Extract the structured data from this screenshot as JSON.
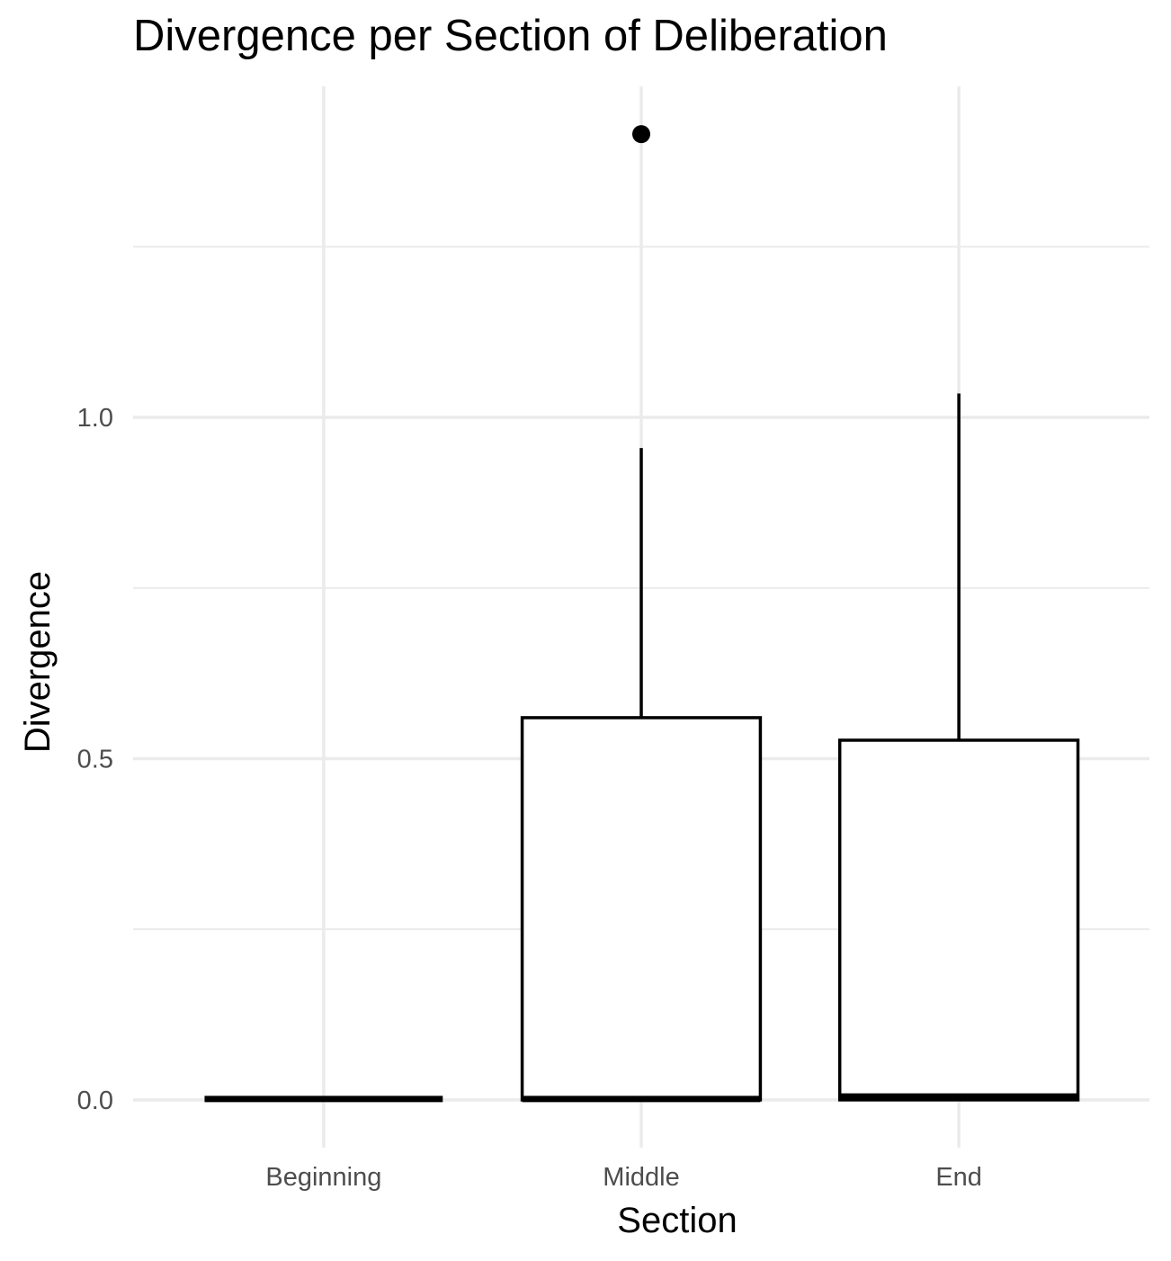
{
  "chart_data": {
    "type": "boxplot",
    "title": "Divergence per Section of Deliberation",
    "xlabel": "Section",
    "ylabel": "Divergence",
    "categories": [
      "Beginning",
      "Middle",
      "End"
    ],
    "boxes": [
      {
        "category": "Beginning",
        "whisker_low": 0.0,
        "q1": 0.0,
        "median": 0.0,
        "q3": 0.0,
        "whisker_high": 0.0,
        "outliers": []
      },
      {
        "category": "Middle",
        "whisker_low": 0.0,
        "q1": 0.0,
        "median": 0.0,
        "q3": 0.56,
        "whisker_high": 0.955,
        "outliers": [
          1.415
        ]
      },
      {
        "category": "End",
        "whisker_low": 0.0,
        "q1": 0.0,
        "median": 0.005,
        "q3": 0.527,
        "whisker_high": 1.035,
        "outliers": []
      }
    ],
    "y_ticks": [
      0.0,
      0.5,
      1.0
    ],
    "y_tick_labels": [
      "0.0",
      "0.5",
      "1.0"
    ],
    "ylim": [
      -0.07,
      1.485
    ],
    "grid": true,
    "colors": {
      "box_fill": "#ffffff",
      "box_stroke": "#000000",
      "grid": "#ebebeb",
      "tick_text": "#4d4d4d"
    }
  }
}
